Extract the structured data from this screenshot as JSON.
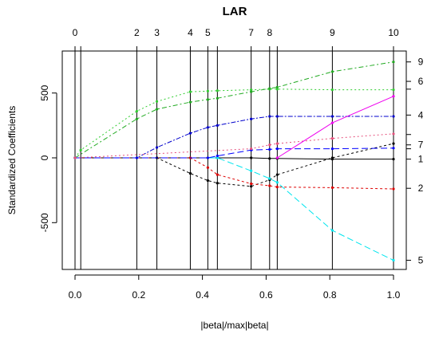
{
  "chart_data": {
    "type": "line",
    "title": "LAR",
    "xlabel": "|beta|/max|beta|",
    "ylabel": "Standardized Coefficients",
    "xlim": [
      0.0,
      1.0
    ],
    "ylim": [
      -800,
      750
    ],
    "x_ticks": [
      "0.0",
      "0.2",
      "0.4",
      "0.6",
      "0.8",
      "1.0"
    ],
    "y_ticks": [
      "-500",
      "0",
      "500"
    ],
    "steps": [
      {
        "x": 0.0,
        "label": "0"
      },
      {
        "x": 0.018,
        "label": ""
      },
      {
        "x": 0.194,
        "label": "2"
      },
      {
        "x": 0.257,
        "label": "3"
      },
      {
        "x": 0.362,
        "label": "4"
      },
      {
        "x": 0.417,
        "label": "5"
      },
      {
        "x": 0.447,
        "label": ""
      },
      {
        "x": 0.553,
        "label": "7"
      },
      {
        "x": 0.611,
        "label": "8"
      },
      {
        "x": 0.635,
        "label": ""
      },
      {
        "x": 0.808,
        "label": "9"
      },
      {
        "x": 1.0,
        "label": "10"
      }
    ],
    "right_axis_labels": [
      {
        "y": 740,
        "label": "9"
      },
      {
        "y": 590,
        "label": "6"
      },
      {
        "y": 530,
        "label": ""
      },
      {
        "y": 330,
        "label": "4"
      },
      {
        "y": 180,
        "label": ""
      },
      {
        "y": 100,
        "label": "7"
      },
      {
        "y": 70,
        "label": ""
      },
      {
        "y": -10,
        "label": "1"
      },
      {
        "y": -235,
        "label": "2"
      },
      {
        "y": -790,
        "label": "5"
      }
    ],
    "series": [
      {
        "color": "#32cd32",
        "dash": "2,3",
        "x": [
          0.0,
          0.018,
          0.194,
          0.257,
          0.362,
          0.417,
          0.447,
          0.553,
          0.611,
          0.635,
          0.808,
          1.0
        ],
        "y": [
          0,
          60,
          360,
          435,
          510,
          515,
          518,
          525,
          530,
          530,
          525,
          525
        ]
      },
      {
        "color": "#22aa22",
        "dash": "6,3,2,3",
        "x": [
          0.0,
          0.194,
          0.257,
          0.362,
          0.417,
          0.447,
          0.553,
          0.611,
          0.635,
          0.808,
          1.0
        ],
        "y": [
          0,
          300,
          375,
          430,
          450,
          460,
          510,
          535,
          545,
          665,
          740
        ]
      },
      {
        "color": "#0000cc",
        "dash": "6,2,2,2",
        "x": [
          0.0,
          0.194,
          0.257,
          0.362,
          0.417,
          0.447,
          0.553,
          0.611,
          0.635,
          0.808,
          1.0
        ],
        "y": [
          0,
          0,
          80,
          190,
          235,
          250,
          300,
          320,
          320,
          320,
          320
        ]
      },
      {
        "color": "#000000",
        "dash": "",
        "x": [
          0.0,
          0.553,
          0.611,
          0.635,
          0.808,
          1.0
        ],
        "y": [
          0,
          0,
          -5,
          -5,
          -10,
          -10
        ]
      },
      {
        "color": "#000000",
        "dash": "3,3",
        "x": [
          0.0,
          0.257,
          0.362,
          0.417,
          0.447,
          0.553,
          0.611,
          0.635,
          0.808,
          1.0
        ],
        "y": [
          0,
          0,
          -120,
          -175,
          -195,
          -220,
          -170,
          -130,
          0,
          110
        ]
      },
      {
        "color": "#dd0000",
        "dash": "3,3",
        "x": [
          0.0,
          0.362,
          0.417,
          0.447,
          0.553,
          0.611,
          0.635,
          0.808,
          1.0
        ],
        "y": [
          0,
          0,
          -75,
          -130,
          -200,
          -215,
          -225,
          -230,
          -240
        ]
      },
      {
        "color": "#00e5ee",
        "dash": "8,4",
        "x": [
          0.0,
          0.447,
          0.553,
          0.611,
          0.635,
          0.808,
          1.0
        ],
        "y": [
          0,
          0,
          -100,
          -160,
          -190,
          -560,
          -790
        ]
      },
      {
        "color": "#0000ff",
        "dash": "8,4",
        "x": [
          0.0,
          0.417,
          0.447,
          0.553,
          0.611,
          0.635,
          0.808,
          1.0
        ],
        "y": [
          0,
          0,
          15,
          60,
          65,
          70,
          70,
          75
        ]
      },
      {
        "color": "#e6507d",
        "dash": "2,3",
        "x": [
          0.0,
          0.553,
          0.611,
          0.635,
          0.808,
          1.0
        ],
        "y": [
          0,
          70,
          100,
          110,
          150,
          185
        ]
      },
      {
        "color": "#ee00ee",
        "dash": "",
        "x": [
          0.635,
          0.808,
          1.0
        ],
        "y": [
          0,
          270,
          475
        ]
      }
    ]
  }
}
